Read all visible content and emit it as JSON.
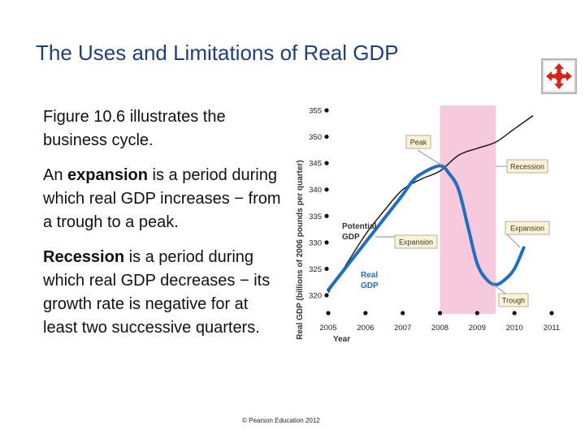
{
  "slide": {
    "title": "The Uses and Limitations of Real GDP",
    "paragraph1": "Figure 10.6 illustrates the business cycle.",
    "p2_term": "expansion",
    "p2_pre": "An ",
    "p2_post": " is a period during which real GDP increases − from a trough to a peak.",
    "p3_term": "Recession",
    "p3_post": " is a period during which real GDP decreases − its growth rate is negative for at least two successive quarters.",
    "footer": "© Pearson Education 2012",
    "nav_icon": "move-arrows-icon"
  },
  "colors": {
    "title": "#1f3f78",
    "recession_band": "#f6c9dd",
    "real_gdp": "#1f6fc0",
    "potential_gdp": "#111111",
    "callout_fill": "#fdf3d3",
    "icon_red": "#d8231c"
  },
  "chart_data": {
    "type": "line",
    "ylabel": "Real GDP (billions of 2006 pounds per quarter)",
    "xlabel": "Year",
    "ylim": [
      320,
      355
    ],
    "yticks": [
      320,
      325,
      330,
      335,
      340,
      345,
      350,
      355
    ],
    "xticks": [
      "2005",
      "2006",
      "2007",
      "2008",
      "2009",
      "2010",
      "2011"
    ],
    "recession_shade": [
      "2008",
      "2009.5"
    ],
    "series": [
      {
        "name": "Potential GDP",
        "x": [
          2005.0,
          2005.5,
          2006.0,
          2006.5,
          2007.0,
          2007.5,
          2008.0,
          2008.5,
          2009.0,
          2009.5,
          2010.0,
          2010.5
        ],
        "values": [
          320.5,
          326.0,
          331.5,
          336.0,
          340.0,
          342.0,
          343.5,
          346.5,
          347.8,
          349.0,
          351.5,
          354.0
        ]
      },
      {
        "name": "Real GDP",
        "x": [
          2005.0,
          2005.5,
          2006.0,
          2006.5,
          2007.0,
          2007.25,
          2007.5,
          2008.0,
          2008.25,
          2008.5,
          2008.75,
          2009.0,
          2009.25,
          2009.5,
          2009.75,
          2010.0,
          2010.25
        ],
        "values": [
          321.0,
          325.5,
          330.0,
          334.5,
          339.0,
          341.5,
          343.0,
          344.5,
          343.0,
          340.0,
          333.0,
          326.0,
          323.0,
          322.0,
          323.0,
          325.0,
          329.0
        ]
      }
    ],
    "annotations": [
      "Peak",
      "Recession",
      "Expansion",
      "Expansion",
      "Trough"
    ],
    "series_labels": [
      "Potential GDP",
      "Real GDP"
    ]
  }
}
